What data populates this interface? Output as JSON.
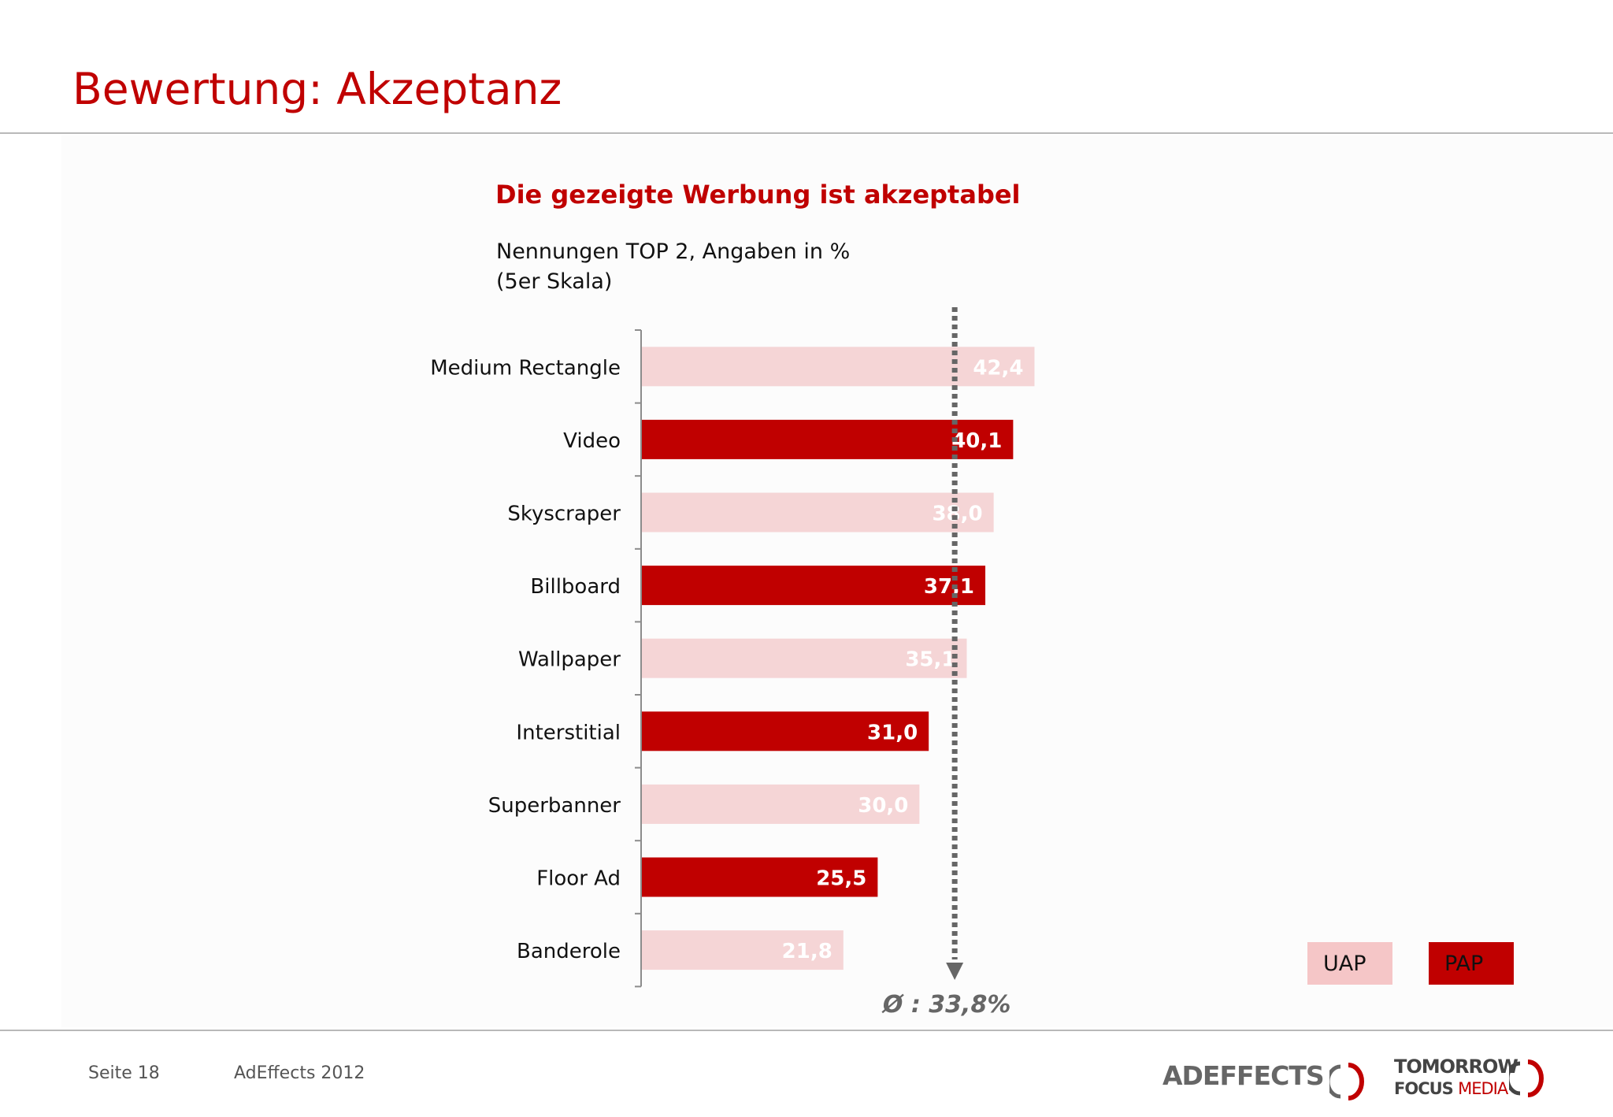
{
  "header": {
    "title": "Bewertung: Akzeptanz"
  },
  "chart_header": {
    "title": "Die gezeigte Werbung ist akzeptabel",
    "subtitle_line1": "Nennungen TOP 2, Angaben in %",
    "subtitle_line2": "(5er Skala)"
  },
  "colors": {
    "accent": "#c00000",
    "uap_bar": "#f5d5d6",
    "pap_bar": "#c00000",
    "average_line": "#666666"
  },
  "chart_data": {
    "type": "bar",
    "orientation": "horizontal",
    "title": "Die gezeigte Werbung ist akzeptabel",
    "categories": [
      "Medium Rectangle",
      "Video",
      "Skyscraper",
      "Billboard",
      "Wallpaper",
      "Interstitial",
      "Superbanner",
      "Floor Ad",
      "Banderole"
    ],
    "values": [
      42.4,
      40.1,
      38.0,
      37.1,
      35.1,
      31.0,
      30.0,
      25.5,
      21.8
    ],
    "value_labels": [
      "42,4",
      "40,1",
      "38,0",
      "37,1",
      "35,1",
      "31,0",
      "30,0",
      "25,5",
      "21,8"
    ],
    "groups": [
      "UAP",
      "PAP",
      "UAP",
      "PAP",
      "UAP",
      "PAP",
      "UAP",
      "PAP",
      "UAP"
    ],
    "legend": [
      {
        "name": "UAP",
        "color": "#f5d5d6"
      },
      {
        "name": "PAP",
        "color": "#c00000"
      }
    ],
    "legend_position": "bottom-right",
    "average": {
      "value": 33.8,
      "label": "Ø : 33,8%"
    },
    "xlim": [
      0,
      50
    ],
    "grid": false
  },
  "footer": {
    "page": "Seite 18",
    "source": "AdEffects 2012",
    "logo_adeffects": "ADEFFECTS",
    "logo_tfm_line1": "TOMORROW",
    "logo_tfm_line2a": "FOCUS",
    "logo_tfm_line2b": "MEDIA"
  }
}
